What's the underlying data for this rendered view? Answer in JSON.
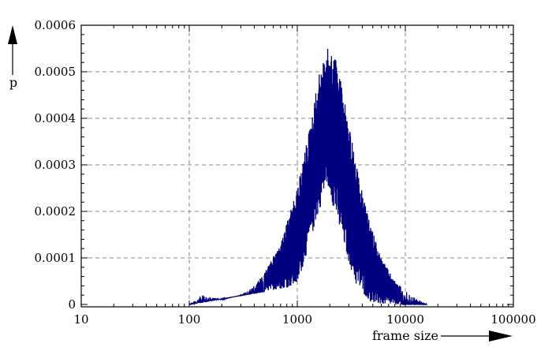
{
  "chart_data": {
    "type": "line",
    "xlabel": "frame size",
    "ylabel": "p",
    "x_scale": "log",
    "xlim": [
      10,
      100000
    ],
    "ylim": [
      0,
      0.0006
    ],
    "grid": true,
    "x_ticks": [
      {
        "value": 10,
        "label": "10"
      },
      {
        "value": 100,
        "label": "100"
      },
      {
        "value": 1000,
        "label": "1000"
      },
      {
        "value": 10000,
        "label": "10000"
      },
      {
        "value": 100000,
        "label": "100000"
      }
    ],
    "y_ticks": [
      {
        "value": 0,
        "label": "0"
      },
      {
        "value": 0.0001,
        "label": "0.0001"
      },
      {
        "value": 0.0002,
        "label": "0.0002"
      },
      {
        "value": 0.0003,
        "label": "0.0003"
      },
      {
        "value": 0.0004,
        "label": "0.0004"
      },
      {
        "value": 0.0005,
        "label": "0.0005"
      },
      {
        "value": 0.0006,
        "label": "0.0006"
      }
    ],
    "series": [
      {
        "color": "#000080",
        "x_range": [
          100,
          16000
        ],
        "peak_x": 1900,
        "peak_y": 0.00055,
        "envelope": [
          {
            "x": 100,
            "y": 0.0
          },
          {
            "x": 130,
            "y": 2e-05
          },
          {
            "x": 200,
            "y": 1e-05
          },
          {
            "x": 300,
            "y": 2e-05
          },
          {
            "x": 400,
            "y": 4e-05
          },
          {
            "x": 500,
            "y": 7e-05
          },
          {
            "x": 700,
            "y": 0.00013
          },
          {
            "x": 1000,
            "y": 0.00025
          },
          {
            "x": 1300,
            "y": 0.00038
          },
          {
            "x": 1600,
            "y": 0.0005
          },
          {
            "x": 1900,
            "y": 0.00055
          },
          {
            "x": 2300,
            "y": 0.00053
          },
          {
            "x": 2800,
            "y": 0.00043
          },
          {
            "x": 3500,
            "y": 0.0003
          },
          {
            "x": 4500,
            "y": 0.00019
          },
          {
            "x": 6000,
            "y": 0.0001
          },
          {
            "x": 8000,
            "y": 5e-05
          },
          {
            "x": 10000,
            "y": 3e-05
          },
          {
            "x": 13000,
            "y": 1e-05
          },
          {
            "x": 16000,
            "y": 0.0
          }
        ],
        "floor": [
          {
            "x": 100,
            "y": 0.0
          },
          {
            "x": 1000,
            "y": 4e-05
          },
          {
            "x": 1500,
            "y": 0.00018
          },
          {
            "x": 1900,
            "y": 0.00026
          },
          {
            "x": 2500,
            "y": 0.00015
          },
          {
            "x": 3500,
            "y": 4e-05
          },
          {
            "x": 5000,
            "y": 0.0
          },
          {
            "x": 16000,
            "y": 0.0
          }
        ]
      }
    ]
  }
}
